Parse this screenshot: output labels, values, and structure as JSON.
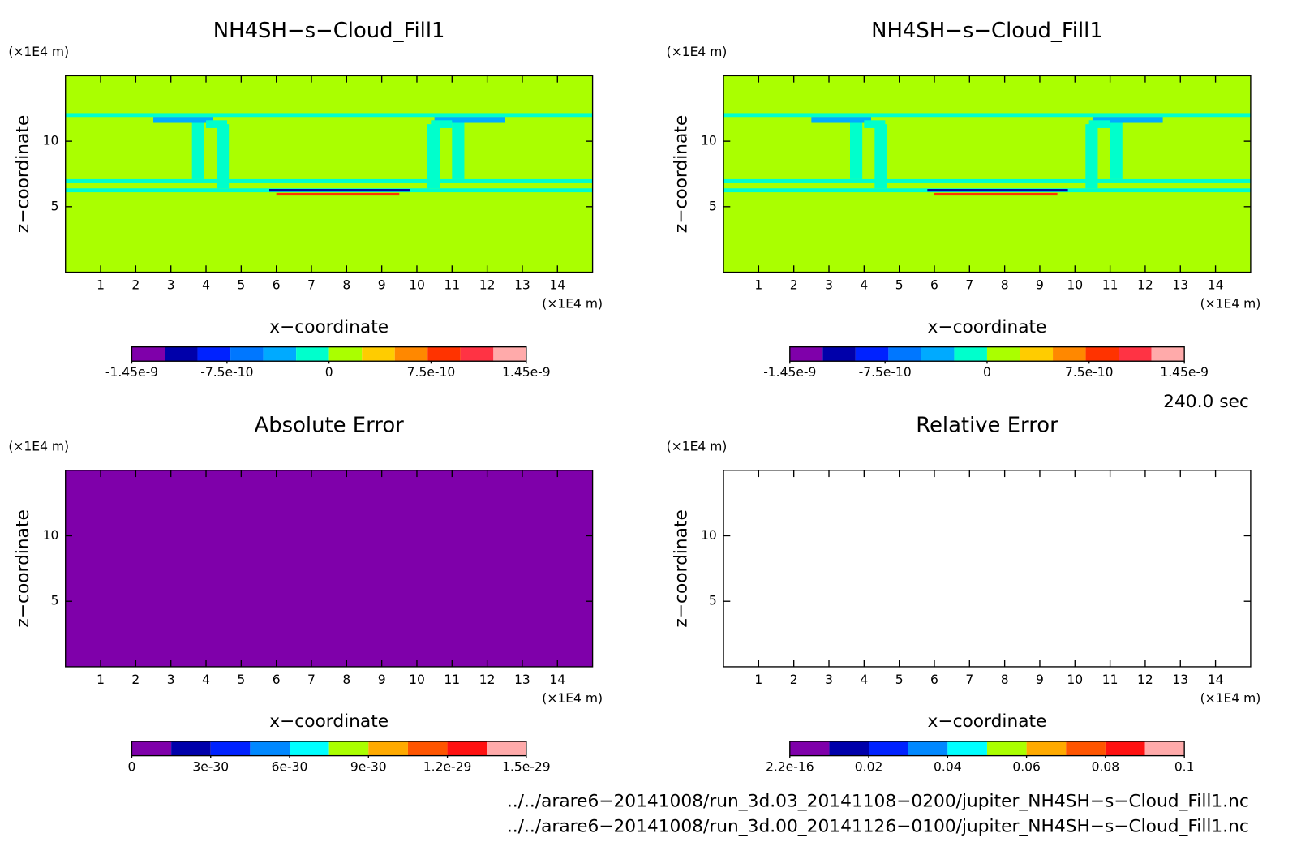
{
  "chart_data": [
    {
      "type": "contour",
      "title": "NH4SH−s−Cloud_Fill1",
      "x_label": "x−coordinate",
      "y_label": "z−coordinate",
      "x_unit": "(×1E4 m)",
      "y_unit": "(×1E4 m)",
      "background": "#aaff00",
      "xlim": [
        0,
        15
      ],
      "xticks": [
        1,
        2,
        3,
        4,
        5,
        6,
        7,
        8,
        9,
        10,
        11,
        12,
        13,
        14
      ],
      "ylim": [
        0,
        15
      ],
      "yticks": [
        5,
        10
      ],
      "colorbar": {
        "colors": [
          "#7f00aa",
          "#0000aa",
          "#0022ff",
          "#0077ff",
          "#00aaff",
          "#00ffcc",
          "#aaff00",
          "#ffcc00",
          "#ff8800",
          "#ff3300",
          "#ff3344",
          "#ffaaaa"
        ],
        "lim": [
          -1.45e-09,
          1.45e-09
        ],
        "ticks": [
          -1.45e-09,
          -7.5e-10,
          0,
          7.5e-10,
          1.45e-09
        ]
      }
    },
    {
      "type": "contour",
      "title": "NH4SH−s−Cloud_Fill1",
      "x_label": "x−coordinate",
      "y_label": "z−coordinate",
      "x_unit": "(×1E4 m)",
      "y_unit": "(×1E4 m)",
      "background": "#aaff00",
      "xlim": [
        0,
        15
      ],
      "xticks": [
        1,
        2,
        3,
        4,
        5,
        6,
        7,
        8,
        9,
        10,
        11,
        12,
        13,
        14
      ],
      "ylim": [
        0,
        15
      ],
      "yticks": [
        5,
        10
      ],
      "colorbar": {
        "colors": [
          "#7f00aa",
          "#0000aa",
          "#0022ff",
          "#0077ff",
          "#00aaff",
          "#00ffcc",
          "#aaff00",
          "#ffcc00",
          "#ff8800",
          "#ff3300",
          "#ff3344",
          "#ffaaaa"
        ],
        "lim": [
          -1.45e-09,
          1.45e-09
        ],
        "ticks": [
          -1.45e-09,
          -7.5e-10,
          0,
          7.5e-10,
          1.45e-09
        ]
      }
    },
    {
      "type": "uniform",
      "title": "Absolute Error",
      "x_label": "x−coordinate",
      "y_label": "z−coordinate",
      "x_unit": "(×1E4 m)",
      "y_unit": "(×1E4 m)",
      "background": "#7f00aa",
      "xlim": [
        0,
        15
      ],
      "xticks": [
        1,
        2,
        3,
        4,
        5,
        6,
        7,
        8,
        9,
        10,
        11,
        12,
        13,
        14
      ],
      "ylim": [
        0,
        15
      ],
      "yticks": [
        5,
        10
      ],
      "colorbar": {
        "colors": [
          "#7f00aa",
          "#0000aa",
          "#0022ff",
          "#0088ff",
          "#00ffff",
          "#aaff00",
          "#ffaa00",
          "#ff5500",
          "#ff1111",
          "#ffaaaa"
        ],
        "lim": [
          0,
          1.5e-29
        ],
        "ticks": [
          0,
          3e-30,
          6e-30,
          9e-30,
          1.2e-29,
          1.5e-29
        ]
      }
    },
    {
      "type": "uniform",
      "title": "Relative Error",
      "x_label": "x−coordinate",
      "y_label": "z−coordinate",
      "x_unit": "(×1E4 m)",
      "y_unit": "(×1E4 m)",
      "background": "#ffffff",
      "xlim": [
        0,
        15
      ],
      "xticks": [
        1,
        2,
        3,
        4,
        5,
        6,
        7,
        8,
        9,
        10,
        11,
        12,
        13,
        14
      ],
      "ylim": [
        0,
        15
      ],
      "yticks": [
        5,
        10
      ],
      "colorbar": {
        "colors": [
          "#7f00aa",
          "#0000aa",
          "#0022ff",
          "#0088ff",
          "#00ffff",
          "#aaff00",
          "#ffaa00",
          "#ff5500",
          "#ff1111",
          "#ffaaaa"
        ],
        "lim": [
          2.2e-16,
          0.1
        ],
        "ticks": [
          2.2e-16,
          0.02,
          0.04,
          0.06,
          0.08,
          0.1
        ]
      }
    }
  ],
  "time": "240.0 sec",
  "files": [
    "../../arare6−20141008/run_3d.03_20141108−0200/jupiter_NH4SH−s−Cloud_Fill1.nc",
    "../../arare6−20141008/run_3d.00_20141126−0100/jupiter_NH4SH−s−Cloud_Fill1.nc"
  ]
}
